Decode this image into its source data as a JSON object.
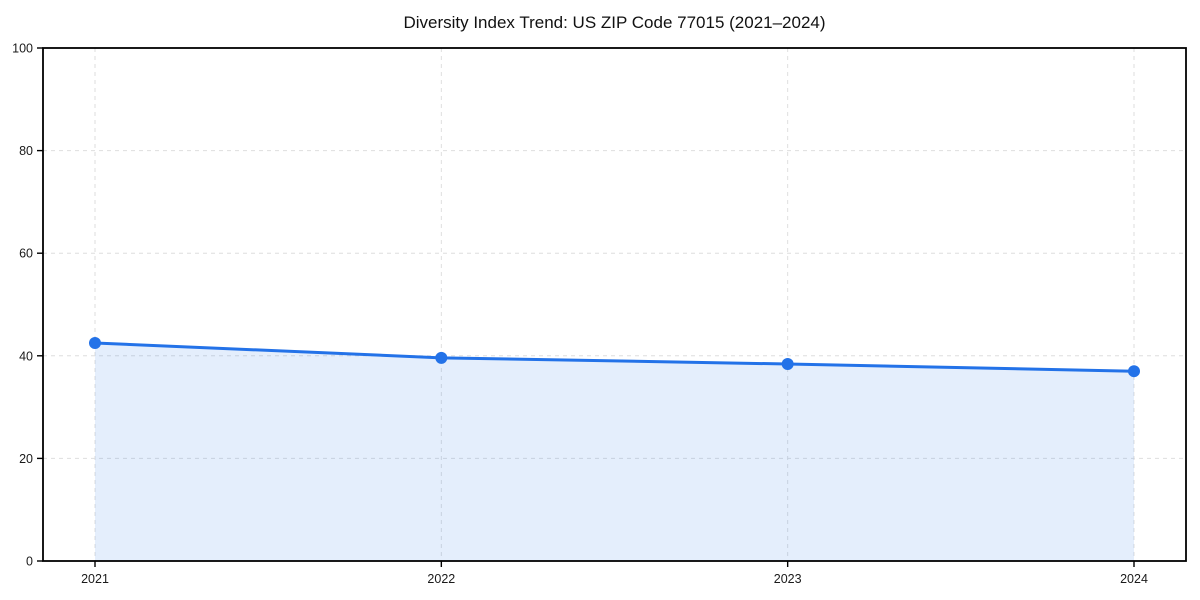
{
  "figure": {
    "background": "#ffffff"
  },
  "chart_data": {
    "type": "line",
    "title": "Diversity Index Trend: US ZIP Code 77015 (2021–2024)",
    "x": [
      2021,
      2022,
      2023,
      2024
    ],
    "x_tick_labels": [
      "2021",
      "2022",
      "2023",
      "2024"
    ],
    "series": [
      {
        "name": "Diversity Index",
        "values": [
          42.5,
          39.6,
          38.4,
          37.0
        ],
        "line_color": "#2372e8",
        "fill_color": "rgba(35,114,232,0.12)",
        "marker": "circle",
        "marker_radius": 6,
        "line_width": 3,
        "area_fill": true
      }
    ],
    "xlabel": "",
    "ylabel": "",
    "ylim": [
      0,
      100
    ],
    "y_ticks": [
      0,
      20,
      40,
      60,
      80,
      100
    ],
    "y_tick_labels": [
      "0",
      "20",
      "40",
      "60",
      "80",
      "100"
    ],
    "grid": "dashed-both-axes",
    "grid_color": "#dedede",
    "axis_border_color": "#000000",
    "tick_label_color": "#1a1a1a",
    "legend": "none"
  }
}
